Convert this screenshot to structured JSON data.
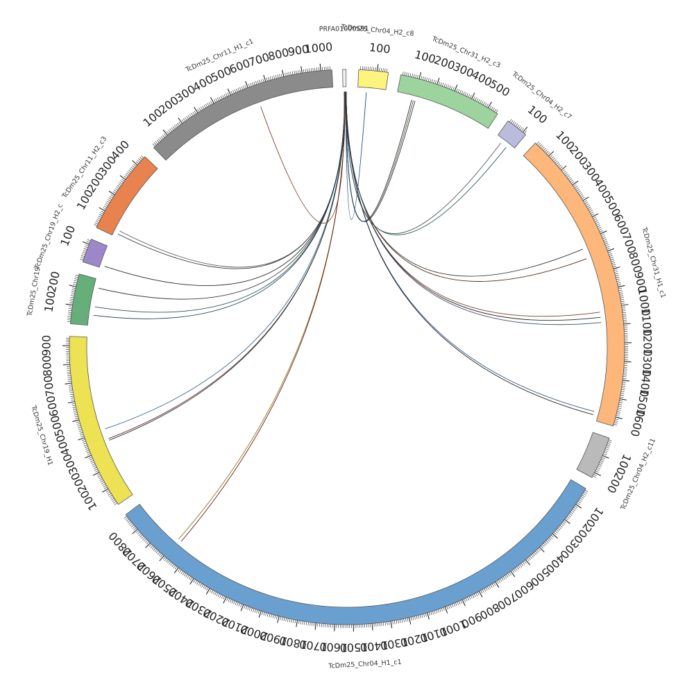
{
  "diagram": {
    "type": "circos",
    "segments": [
      {
        "id": "PRFA01000591",
        "label": "PRFA01000591",
        "length": 8,
        "color": "#f2f2f2",
        "tick_labels": false
      },
      {
        "id": "chr04_h2_c8",
        "label": "TcDm25_Chr04_H2_c8",
        "length": 160,
        "color": "#fdf47e"
      },
      {
        "id": "chr31_h2_c3",
        "label": "TcDm25_Chr31_H2_c3",
        "length": 560,
        "color": "#9dd39d"
      },
      {
        "id": "chr04_h2_c7",
        "label": "TcDm25_Chr04_H2_c7",
        "length": 120,
        "color": "#bcbbde"
      },
      {
        "id": "chr31_h1_c1",
        "label": "TcDm25_Chr31_H1_c1",
        "length": 1650,
        "color": "#fdb77a"
      },
      {
        "id": "chr04_h2_c11",
        "label": "TcDm25_Chr04_H2_c11",
        "length": 230,
        "color": "#bababa"
      },
      {
        "id": "chr04_h1_c1",
        "label": "TcDm25_Chr04_H1_c1",
        "length": 2900,
        "color": "#6aa0d0"
      },
      {
        "id": "chr19_h1",
        "label": "TcDm25_Chr19_H1",
        "length": 950,
        "color": "#ece253"
      },
      {
        "id": "chr19_c",
        "label": "TcDm25_Chr19",
        "length": 270,
        "color": "#67af7a"
      },
      {
        "id": "chr19_h2_c",
        "label": "TcDm25_Chr19_H2_c",
        "length": 130,
        "color": "#9c88c8"
      },
      {
        "id": "chr11_h2_c3",
        "label": "TcDm25_Chr11_H2_c3",
        "length": 460,
        "color": "#e8834f"
      },
      {
        "id": "chr11_h1_c1",
        "label": "TcDm25_Chr11_H1_c1",
        "length": 1060,
        "color": "#8b8b8b"
      }
    ],
    "links": [
      {
        "from": "PRFA01000591",
        "from_pos": 3,
        "to": "chr11_h1_c1",
        "to_pos": 630,
        "color": "#7a3b2a"
      },
      {
        "from": "PRFA01000591",
        "from_pos": 4,
        "to": "chr11_h2_c3",
        "to_pos": 20,
        "color": "#333333"
      },
      {
        "from": "PRFA01000591",
        "from_pos": 4,
        "to": "chr11_h2_c3",
        "to_pos": 40,
        "color": "#555555"
      },
      {
        "from": "PRFA01000591",
        "from_pos": 4,
        "to": "chr19_h2_c",
        "to_pos": 15,
        "color": "#2a2a2a"
      },
      {
        "from": "PRFA01000591",
        "from_pos": 5,
        "to": "chr19_c",
        "to_pos": 220,
        "color": "#3a3a3a"
      },
      {
        "from": "PRFA01000591",
        "from_pos": 5,
        "to": "chr19_c",
        "to_pos": 110,
        "color": "#2f4f4f"
      },
      {
        "from": "PRFA01000591",
        "from_pos": 5,
        "to": "chr19_c",
        "to_pos": 60,
        "color": "#1f3a4f"
      },
      {
        "from": "PRFA01000591",
        "from_pos": 5,
        "to": "chr19_h1",
        "to_pos": 410,
        "color": "#3a6a8a"
      },
      {
        "from": "PRFA01000591",
        "from_pos": 6,
        "to": "chr19_h1",
        "to_pos": 350,
        "color": "#6a2a3a"
      },
      {
        "from": "PRFA01000591",
        "from_pos": 6,
        "to": "chr19_h1",
        "to_pos": 340,
        "color": "#2a3a2a"
      },
      {
        "from": "PRFA01000591",
        "from_pos": 6,
        "to": "chr04_h1_c1",
        "to_pos": 2600,
        "color": "#8a7a1a"
      },
      {
        "from": "PRFA01000591",
        "from_pos": 6,
        "to": "chr04_h1_c1",
        "to_pos": 2580,
        "color": "#6a1a1a"
      },
      {
        "from": "PRFA01000591",
        "from_pos": 7,
        "to": "chr04_h2_c8",
        "to_pos": 50,
        "color": "#1a4a8a"
      },
      {
        "from": "PRFA01000591",
        "from_pos": 7,
        "to": "chr31_h2_c3",
        "to_pos": 90,
        "color": "#2a2a2a"
      },
      {
        "from": "PRFA01000591",
        "from_pos": 7,
        "to": "chr31_h2_c3",
        "to_pos": 100,
        "color": "#6a5a1a"
      },
      {
        "from": "PRFA01000591",
        "from_pos": 7,
        "to": "chr31_h2_c3",
        "to_pos": 110,
        "color": "#1a3a6a"
      },
      {
        "from": "PRFA01000591",
        "from_pos": 7,
        "to": "chr04_h2_c7",
        "to_pos": 40,
        "color": "#555555"
      },
      {
        "from": "PRFA01000591",
        "from_pos": 7,
        "to": "chr04_h2_c7",
        "to_pos": 80,
        "color": "#2a5a5a"
      },
      {
        "from": "PRFA01000591",
        "from_pos": 7,
        "to": "chr31_h1_c1",
        "to_pos": 640,
        "color": "#333333"
      },
      {
        "from": "PRFA01000591",
        "from_pos": 7,
        "to": "chr31_h1_c1",
        "to_pos": 700,
        "color": "#4a2a1a"
      },
      {
        "from": "PRFA01000591",
        "from_pos": 8,
        "to": "chr31_h1_c1",
        "to_pos": 1020,
        "color": "#7a3a2a"
      },
      {
        "from": "PRFA01000591",
        "from_pos": 8,
        "to": "chr31_h1_c1",
        "to_pos": 1050,
        "color": "#2a2a2a"
      },
      {
        "from": "PRFA01000591",
        "from_pos": 8,
        "to": "chr31_h1_c1",
        "to_pos": 1080,
        "color": "#3a4a6a"
      },
      {
        "from": "PRFA01000591",
        "from_pos": 8,
        "to": "chr31_h1_c1",
        "to_pos": 1600,
        "color": "#3a5a7a"
      },
      {
        "from": "PRFA01000591",
        "from_pos": 8,
        "to": "chr31_h1_c1",
        "to_pos": 1620,
        "color": "#222222"
      }
    ]
  }
}
